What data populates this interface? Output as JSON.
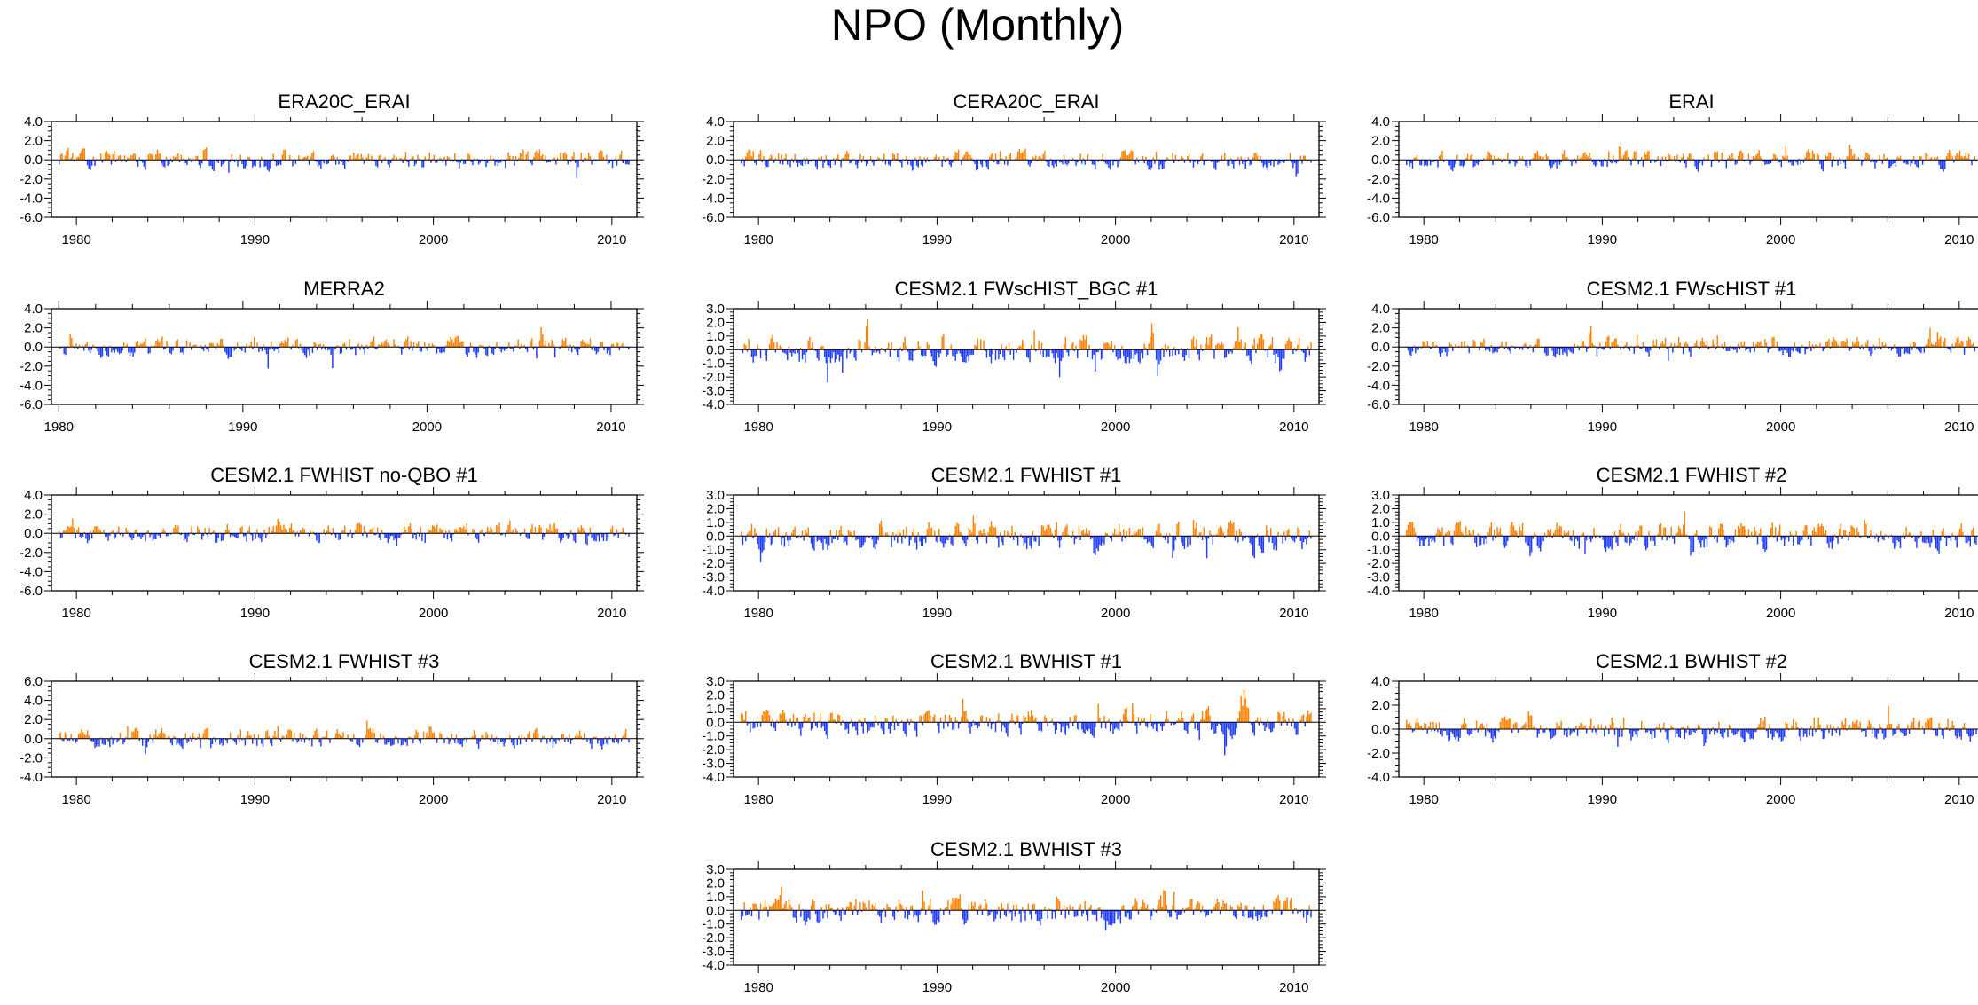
{
  "figure_title": "NPO (Monthly)",
  "colors": {
    "positive": "#ff8000",
    "negative": "#1e3cff",
    "axis": "#000000"
  },
  "chart_data": [
    {
      "type": "bar",
      "title": "ERA20C_ERAI",
      "x_start": 1979.0,
      "x_end": 2011.0,
      "xlim": [
        1978.6,
        2011.4
      ],
      "ylim": [
        -6,
        4
      ],
      "yticks": [
        4,
        2,
        0,
        -2,
        -4,
        -6
      ],
      "ytick_labels": [
        "4.0",
        "2.0",
        "0.0",
        "-2.0",
        "-4.0",
        "-6.0"
      ],
      "xticks": [
        1980,
        1990,
        2000,
        2010
      ],
      "xtick_labels": [
        "1980",
        "1990",
        "2000",
        "2010"
      ],
      "amp_pos": 2.6,
      "amp_neg": 3.2,
      "seed": 11
    },
    {
      "type": "bar",
      "title": "CERA20C_ERAI",
      "x_start": 1979.0,
      "x_end": 2011.0,
      "xlim": [
        1978.6,
        2011.4
      ],
      "ylim": [
        -6,
        4
      ],
      "yticks": [
        4,
        2,
        0,
        -2,
        -4,
        -6
      ],
      "ytick_labels": [
        "4.0",
        "2.0",
        "0.0",
        "-2.0",
        "-4.0",
        "-6.0"
      ],
      "xticks": [
        1980,
        1990,
        2000,
        2010
      ],
      "xtick_labels": [
        "1980",
        "1990",
        "2000",
        "2010"
      ],
      "amp_pos": 2.6,
      "amp_neg": 3.2,
      "seed": 12
    },
    {
      "type": "bar",
      "title": "ERAI",
      "x_start": 1979.0,
      "x_end": 2011.0,
      "xlim": [
        1978.6,
        2011.4
      ],
      "ylim": [
        -6,
        4
      ],
      "yticks": [
        4,
        2,
        0,
        -2,
        -4,
        -6
      ],
      "ytick_labels": [
        "4.0",
        "2.0",
        "0.0",
        "-2.0",
        "-4.0",
        "-6.0"
      ],
      "xticks": [
        1980,
        1990,
        2000,
        2010
      ],
      "xtick_labels": [
        "1980",
        "1990",
        "2000",
        "2010"
      ],
      "amp_pos": 2.6,
      "amp_neg": 3.2,
      "seed": 13
    },
    {
      "type": "bar",
      "title": "MERRA2",
      "x_start": 1980.0,
      "x_end": 2011.0,
      "xlim": [
        1979.6,
        2011.4
      ],
      "ylim": [
        -6,
        4
      ],
      "yticks": [
        4,
        2,
        0,
        -2,
        -4,
        -6
      ],
      "ytick_labels": [
        "4.0",
        "2.0",
        "0.0",
        "-2.0",
        "-4.0",
        "-6.0"
      ],
      "xticks": [
        1980,
        1990,
        2000,
        2010
      ],
      "xtick_labels": [
        "1980",
        "1990",
        "2000",
        "2010"
      ],
      "amp_pos": 2.2,
      "amp_neg": 3.0,
      "seed": 14
    },
    {
      "type": "bar",
      "title": "CESM2.1 FWscHIST_BGC #1",
      "x_start": 1979.0,
      "x_end": 2011.0,
      "xlim": [
        1978.6,
        2011.4
      ],
      "ylim": [
        -4,
        3
      ],
      "yticks": [
        3,
        2,
        1,
        0,
        -1,
        -2,
        -3,
        -4
      ],
      "ytick_labels": [
        "3.0",
        "2.0",
        "1.0",
        "0.0",
        "-1.0",
        "-2.0",
        "-3.0",
        "-4.0"
      ],
      "xticks": [
        1980,
        1990,
        2000,
        2010
      ],
      "xtick_labels": [
        "1980",
        "1990",
        "2000",
        "2010"
      ],
      "amp_pos": 2.4,
      "amp_neg": 3.0,
      "seed": 15
    },
    {
      "type": "bar",
      "title": "CESM2.1 FWscHIST #1",
      "x_start": 1979.0,
      "x_end": 2011.0,
      "xlim": [
        1978.6,
        2011.4
      ],
      "ylim": [
        -6,
        4
      ],
      "yticks": [
        4,
        2,
        0,
        -2,
        -4,
        -6
      ],
      "ytick_labels": [
        "4.0",
        "2.0",
        "0.0",
        "-2.0",
        "-4.0",
        "-6.0"
      ],
      "xticks": [
        1980,
        1990,
        2000,
        2010
      ],
      "xtick_labels": [
        "1980",
        "1990",
        "2000",
        "2010"
      ],
      "amp_pos": 2.2,
      "amp_neg": 3.6,
      "seed": 16
    },
    {
      "type": "bar",
      "title": "CESM2.1 FWHIST no-QBO #1",
      "x_start": 1979.0,
      "x_end": 2011.0,
      "xlim": [
        1978.6,
        2011.4
      ],
      "ylim": [
        -6,
        4
      ],
      "yticks": [
        4,
        2,
        0,
        -2,
        -4,
        -6
      ],
      "ytick_labels": [
        "4.0",
        "2.0",
        "0.0",
        "-2.0",
        "-4.0",
        "-6.0"
      ],
      "xticks": [
        1980,
        1990,
        2000,
        2010
      ],
      "xtick_labels": [
        "1980",
        "1990",
        "2000",
        "2010"
      ],
      "amp_pos": 2.4,
      "amp_neg": 4.0,
      "seed": 17
    },
    {
      "type": "bar",
      "title": "CESM2.1 FWHIST #1",
      "x_start": 1979.0,
      "x_end": 2011.0,
      "xlim": [
        1978.6,
        2011.4
      ],
      "ylim": [
        -4,
        3
      ],
      "yticks": [
        3,
        2,
        1,
        0,
        -1,
        -2,
        -3,
        -4
      ],
      "ytick_labels": [
        "3.0",
        "2.0",
        "1.0",
        "0.0",
        "-1.0",
        "-2.0",
        "-3.0",
        "-4.0"
      ],
      "xticks": [
        1980,
        1990,
        2000,
        2010
      ],
      "xtick_labels": [
        "1980",
        "1990",
        "2000",
        "2010"
      ],
      "amp_pos": 2.8,
      "amp_neg": 3.1,
      "seed": 18
    },
    {
      "type": "bar",
      "title": "CESM2.1 FWHIST #2",
      "x_start": 1979.0,
      "x_end": 2011.0,
      "xlim": [
        1978.6,
        2011.4
      ],
      "ylim": [
        -4,
        3
      ],
      "yticks": [
        3,
        2,
        1,
        0,
        -1,
        -2,
        -3,
        -4
      ],
      "ytick_labels": [
        "3.0",
        "2.0",
        "1.0",
        "0.0",
        "-1.0",
        "-2.0",
        "-3.0",
        "-4.0"
      ],
      "xticks": [
        1980,
        1990,
        2000,
        2010
      ],
      "xtick_labels": [
        "1980",
        "1990",
        "2000",
        "2010"
      ],
      "amp_pos": 2.9,
      "amp_neg": 3.4,
      "seed": 19
    },
    {
      "type": "bar",
      "title": "CESM2.1 FWHIST #3",
      "x_start": 1979.0,
      "x_end": 2011.0,
      "xlim": [
        1978.6,
        2011.4
      ],
      "ylim": [
        -4,
        6
      ],
      "yticks": [
        6,
        4,
        2,
        0,
        -2,
        -4
      ],
      "ytick_labels": [
        "6.0",
        "4.0",
        "2.0",
        "0.0",
        "-2.0",
        "-4.0"
      ],
      "xticks": [
        1980,
        1990,
        2000,
        2010
      ],
      "xtick_labels": [
        "1980",
        "1990",
        "2000",
        "2010"
      ],
      "amp_pos": 4.0,
      "amp_neg": 3.0,
      "seed": 20
    },
    {
      "type": "bar",
      "title": "CESM2.1 BWHIST #1",
      "x_start": 1979.0,
      "x_end": 2011.0,
      "xlim": [
        1978.6,
        2011.4
      ],
      "ylim": [
        -4,
        3
      ],
      "yticks": [
        3,
        2,
        1,
        0,
        -1,
        -2,
        -3,
        -4
      ],
      "ytick_labels": [
        "3.0",
        "2.0",
        "1.0",
        "0.0",
        "-1.0",
        "-2.0",
        "-3.0",
        "-4.0"
      ],
      "xticks": [
        1980,
        1990,
        2000,
        2010
      ],
      "xtick_labels": [
        "1980",
        "1990",
        "2000",
        "2010"
      ],
      "amp_pos": 2.5,
      "amp_neg": 3.1,
      "seed": 21
    },
    {
      "type": "bar",
      "title": "CESM2.1 BWHIST #2",
      "x_start": 1979.0,
      "x_end": 2011.0,
      "xlim": [
        1978.6,
        2011.4
      ],
      "ylim": [
        -4,
        4
      ],
      "yticks": [
        4,
        2,
        0,
        -2,
        -4
      ],
      "ytick_labels": [
        "4.0",
        "2.0",
        "0.0",
        "-2.0",
        "-4.0"
      ],
      "xticks": [
        1980,
        1990,
        2000,
        2010
      ],
      "xtick_labels": [
        "1980",
        "1990",
        "2000",
        "2010"
      ],
      "amp_pos": 2.6,
      "amp_neg": 2.9,
      "seed": 22
    },
    {
      "type": "bar",
      "title": "CESM2.1 BWHIST #3",
      "x_start": 1979.0,
      "x_end": 2011.0,
      "xlim": [
        1978.6,
        2011.4
      ],
      "ylim": [
        -4,
        3
      ],
      "yticks": [
        3,
        2,
        1,
        0,
        -1,
        -2,
        -3,
        -4
      ],
      "ytick_labels": [
        "3.0",
        "2.0",
        "1.0",
        "0.0",
        "-1.0",
        "-2.0",
        "-3.0",
        "-4.0"
      ],
      "xticks": [
        1980,
        1990,
        2000,
        2010
      ],
      "xtick_labels": [
        "1980",
        "1990",
        "2000",
        "2010"
      ],
      "amp_pos": 2.6,
      "amp_neg": 3.2,
      "seed": 23
    }
  ]
}
